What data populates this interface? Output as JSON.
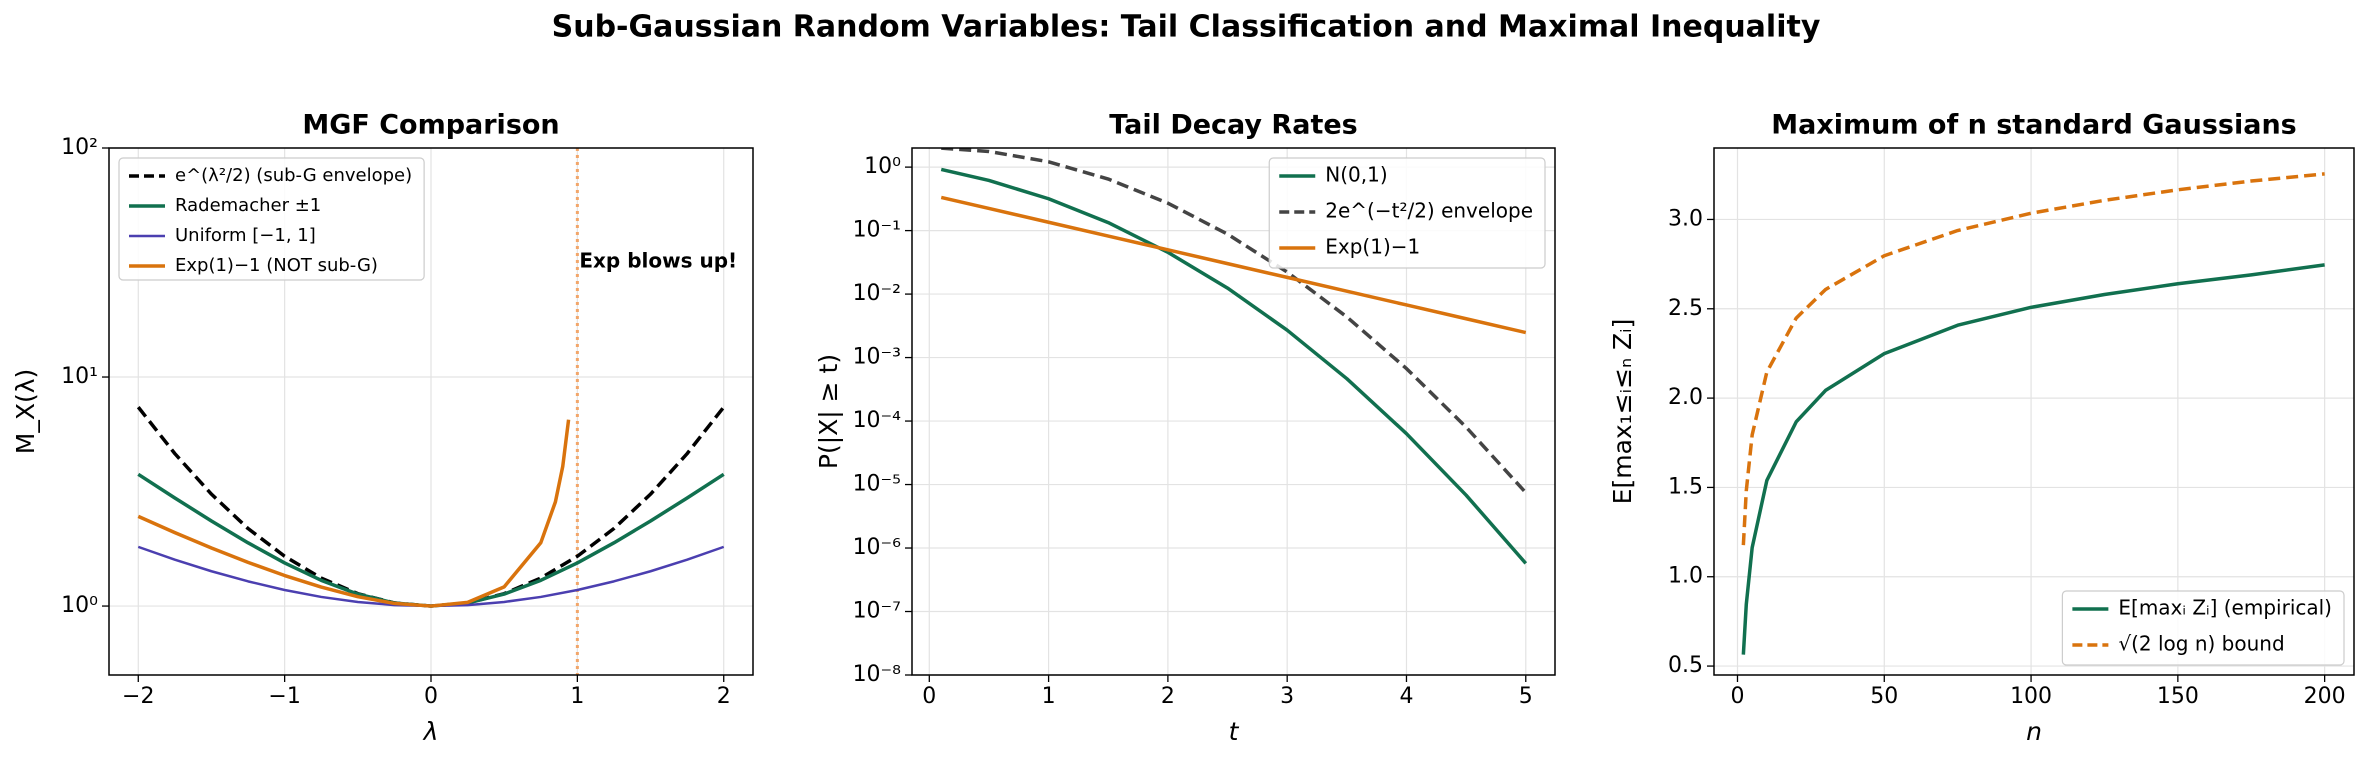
{
  "title": "Sub-Gaussian Random Variables: Tail Classification and Maximal Inequality",
  "chart_data": [
    {
      "type": "line",
      "title": "MGF Comparison",
      "xlabel": "λ",
      "ylabel": "M_X(λ)",
      "xlim": [
        -2.2,
        2.2
      ],
      "ylim": [
        0.5,
        100
      ],
      "log_y": true,
      "grid": true,
      "legend": "upper left",
      "xticks": [
        {
          "value": -2,
          "label": "−2"
        },
        {
          "value": -1,
          "label": "−1"
        },
        0,
        1,
        2
      ],
      "yticks": [
        {
          "value": 1,
          "label": "10⁰"
        },
        {
          "value": 10,
          "label": "10¹"
        },
        {
          "value": 100,
          "label": "10²"
        }
      ],
      "vlines": [
        {
          "x": 1,
          "color": "#f2a66a"
        }
      ],
      "annotation": {
        "text": "Exp blows up!",
        "color": "#d9730d"
      },
      "series": [
        {
          "name": "e^(λ²/2) (sub-G envelope)",
          "color": "#000000",
          "dash": true,
          "width": 3.5,
          "x": [
            -2,
            -1.75,
            -1.5,
            -1.25,
            -1,
            -0.75,
            -0.5,
            -0.25,
            0,
            0.25,
            0.5,
            0.75,
            1,
            1.25,
            1.5,
            1.75,
            2
          ],
          "values": [
            7.39,
            4.63,
            3.08,
            2.18,
            1.65,
            1.325,
            1.133,
            1.032,
            1,
            1.032,
            1.133,
            1.325,
            1.65,
            2.18,
            3.08,
            4.63,
            7.39
          ]
        },
        {
          "name": "Rademacher ±1",
          "color": "#11704f",
          "dash": false,
          "width": 3.5,
          "x": [
            -2,
            -1.75,
            -1.5,
            -1.25,
            -1,
            -0.75,
            -0.5,
            -0.25,
            0,
            0.25,
            0.5,
            0.75,
            1,
            1.25,
            1.5,
            1.75,
            2
          ],
          "values": [
            3.76,
            2.964,
            2.352,
            1.888,
            1.543,
            1.295,
            1.128,
            1.031,
            1,
            1.031,
            1.128,
            1.295,
            1.543,
            1.888,
            2.352,
            2.964,
            3.76
          ]
        },
        {
          "name": "Uniform [−1, 1]",
          "color": "#4b3fb0",
          "dash": false,
          "width": 2.5,
          "x": [
            -2,
            -1.75,
            -1.5,
            -1.25,
            -1,
            -0.75,
            -0.5,
            -0.25,
            0,
            0.25,
            0.5,
            0.75,
            1,
            1.25,
            1.5,
            1.75,
            2
          ],
          "values": [
            1.813,
            1.594,
            1.419,
            1.282,
            1.175,
            1.096,
            1.042,
            1.01,
            1,
            1.01,
            1.042,
            1.096,
            1.175,
            1.282,
            1.419,
            1.594,
            1.813
          ]
        },
        {
          "name": "Exp(1)−1 (NOT sub-G)",
          "color": "#d9730d",
          "dash": false,
          "width": 3.5,
          "x": [
            -2,
            -1.75,
            -1.5,
            -1.25,
            -1,
            -0.75,
            -0.5,
            -0.25,
            0,
            0.25,
            0.5,
            0.75,
            0.85,
            0.9,
            0.94
          ],
          "values": [
            2.463,
            2.093,
            1.793,
            1.551,
            1.359,
            1.21,
            1.099,
            1.027,
            1,
            1.038,
            1.213,
            1.889,
            2.85,
            4.066,
            6.51
          ]
        }
      ]
    },
    {
      "type": "line",
      "title": "Tail Decay Rates",
      "xlabel": "t",
      "ylabel": "P(|X| ≥ t)",
      "xlim": [
        -0.145,
        5.245
      ],
      "ylim": [
        1e-08,
        2
      ],
      "log_y": true,
      "grid": true,
      "legend": "upper right",
      "xticks": [
        0,
        1,
        2,
        3,
        4,
        5
      ],
      "yticks": [
        {
          "value": 1e-08,
          "label": "10⁻⁸"
        },
        {
          "value": 1e-07,
          "label": "10⁻⁷"
        },
        {
          "value": 1e-06,
          "label": "10⁻⁶"
        },
        {
          "value": 1e-05,
          "label": "10⁻⁵"
        },
        {
          "value": 0.0001,
          "label": "10⁻⁴"
        },
        {
          "value": 0.001,
          "label": "10⁻³"
        },
        {
          "value": 0.01,
          "label": "10⁻²"
        },
        {
          "value": 0.1,
          "label": "10⁻¹"
        },
        {
          "value": 1,
          "label": "10⁰"
        }
      ],
      "series": [
        {
          "name": "N(0,1)",
          "color": "#11704f",
          "dash": false,
          "width": 3.5,
          "x": [
            0.1,
            0.5,
            1,
            1.5,
            2,
            2.5,
            3,
            3.5,
            4,
            4.5,
            5
          ],
          "values": [
            0.92,
            0.617,
            0.3173,
            0.1336,
            0.0455,
            0.01242,
            0.0027,
            0.000465,
            6.33e-05,
            6.8e-06,
            5.73e-07
          ]
        },
        {
          "name": "2e^(−t²/2) envelope",
          "color": "#444444",
          "dash": true,
          "width": 3.5,
          "x": [
            0.1,
            0.5,
            1,
            1.5,
            2,
            2.5,
            3,
            3.5,
            4,
            4.5,
            5
          ],
          "values": [
            1.99,
            1.765,
            1.213,
            0.649,
            0.2707,
            0.0879,
            0.02222,
            0.00437,
            0.000671,
            8.02e-05,
            7.45e-06
          ]
        },
        {
          "name": "Exp(1)−1",
          "color": "#d9730d",
          "dash": false,
          "width": 3.5,
          "x": [
            0.1,
            0.5,
            1,
            1.5,
            2,
            2.5,
            3,
            3.5,
            4,
            4.5,
            5
          ],
          "values": [
            0.3329,
            0.2231,
            0.1353,
            0.0821,
            0.0498,
            0.0302,
            0.01832,
            0.01111,
            0.006738,
            0.004087,
            0.002479
          ]
        }
      ]
    },
    {
      "type": "line",
      "title": "Maximum of n standard Gaussians",
      "xlabel": "n",
      "ylabel": "E[max₁≤ᵢ≤ₙ Zᵢ]",
      "xlim": [
        -8,
        210
      ],
      "ylim": [
        0.45,
        3.4
      ],
      "log_y": false,
      "grid": true,
      "legend": "lower right",
      "xticks": [
        0,
        50,
        100,
        150,
        200
      ],
      "yticks": [
        0.5,
        {
          "value": 1,
          "label": "1.0"
        },
        1.5,
        {
          "value": 2,
          "label": "2.0"
        },
        2.5,
        {
          "value": 3,
          "label": "3.0"
        }
      ],
      "series": [
        {
          "name": "E[maxᵢ Zᵢ] (empirical)",
          "color": "#11704f",
          "dash": false,
          "width": 3.5,
          "x": [
            2,
            3,
            5,
            10,
            20,
            30,
            50,
            75,
            100,
            125,
            150,
            175,
            200
          ],
          "values": [
            0.564,
            0.846,
            1.163,
            1.539,
            1.867,
            2.043,
            2.249,
            2.408,
            2.508,
            2.58,
            2.64,
            2.69,
            2.746
          ]
        },
        {
          "name": "√(2 log n) bound",
          "color": "#d9730d",
          "dash": true,
          "width": 3.5,
          "x": [
            2,
            3,
            5,
            10,
            20,
            30,
            50,
            75,
            100,
            125,
            150,
            175,
            200
          ],
          "values": [
            1.177,
            1.482,
            1.794,
            2.146,
            2.448,
            2.608,
            2.797,
            2.938,
            3.035,
            3.107,
            3.166,
            3.215,
            3.255
          ]
        }
      ]
    }
  ]
}
